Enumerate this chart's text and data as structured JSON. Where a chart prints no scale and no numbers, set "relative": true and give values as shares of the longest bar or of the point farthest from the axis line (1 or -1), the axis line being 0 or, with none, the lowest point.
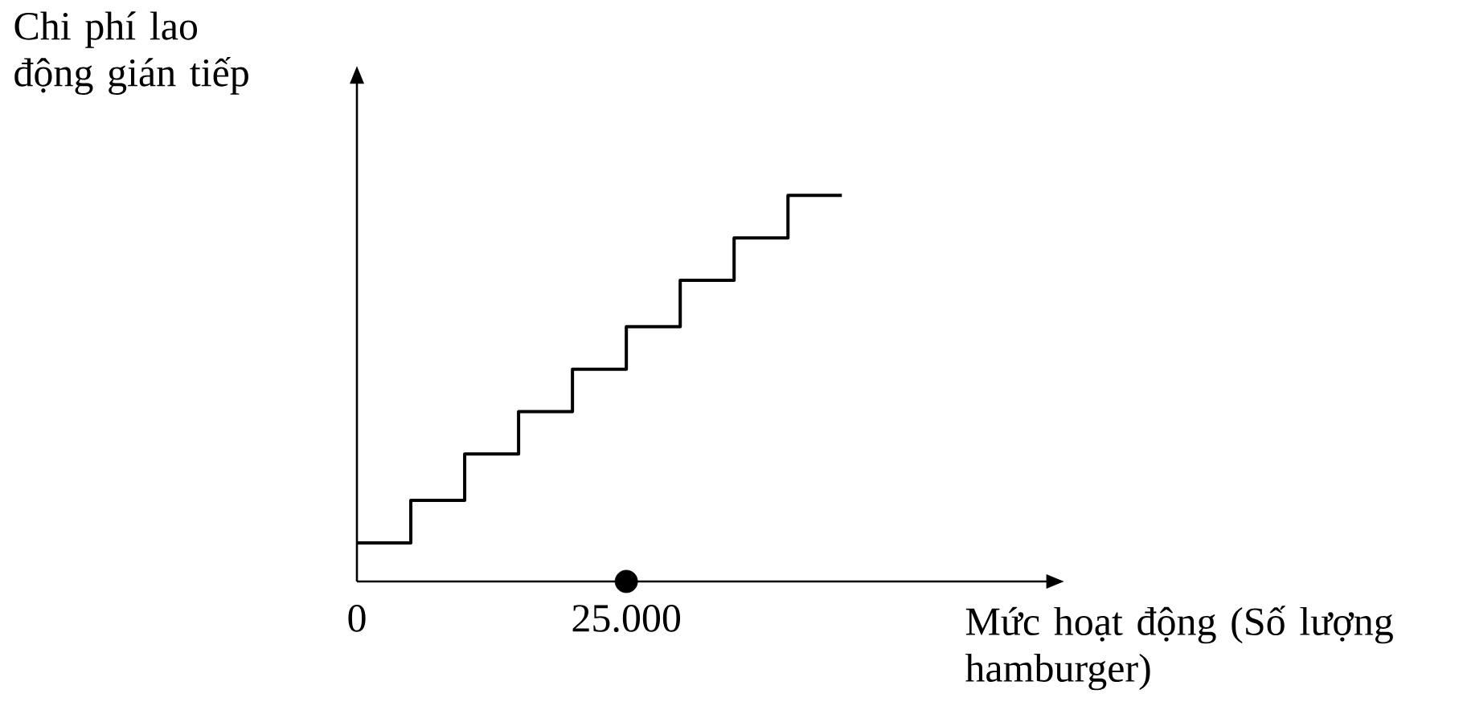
{
  "chart_data": {
    "type": "step",
    "relative": true,
    "ylabel": "Chi phí lao động gián tiếp",
    "xlabel": "Mức hoạt động (Số lượng hamburger)",
    "xlim": [
      0,
      64000
    ],
    "xticks": [
      {
        "value": 0,
        "label": "0"
      },
      {
        "value": 25000,
        "label": "25.000"
      }
    ],
    "grid": false,
    "series": [
      {
        "color": "#000000",
        "marker": "none",
        "x": [
          0,
          5000,
          10000,
          15000,
          20000,
          25000,
          30000,
          35000,
          40000,
          45000
        ],
        "values": [
          0.1,
          0.21,
          0.33,
          0.44,
          0.55,
          0.66,
          0.78,
          0.89,
          1,
          1
        ]
      },
      {
        "type": "scatter",
        "color": "#000000",
        "marker": "circle",
        "x": [
          25000
        ],
        "values": [
          0
        ]
      }
    ]
  }
}
